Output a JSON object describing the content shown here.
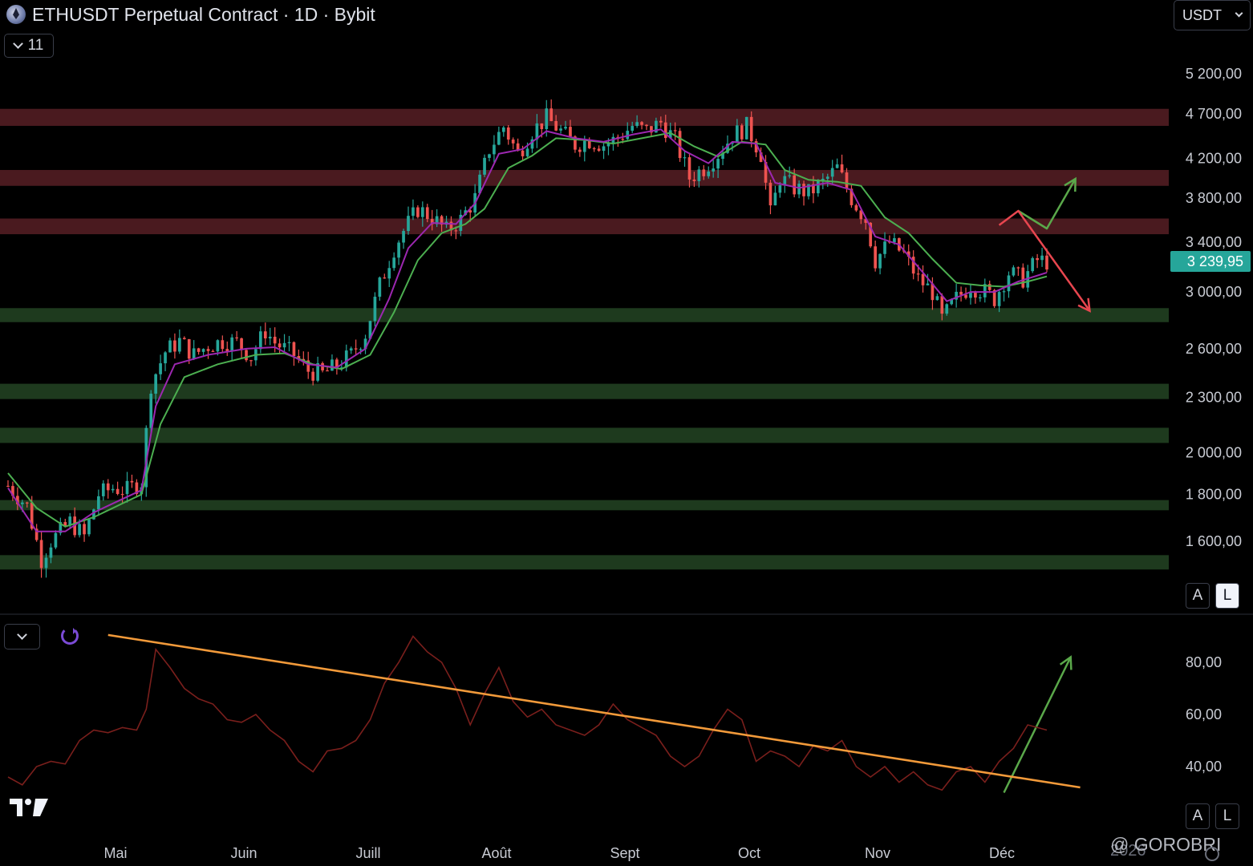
{
  "header": {
    "title": "ETHUSDT Perpetual Contract · 1D · Bybit",
    "indicator_count": "11",
    "currency": "USDT"
  },
  "scale_buttons": {
    "auto": "A",
    "log": "L"
  },
  "watermark": "@ GOROBRI",
  "year_label": "2026",
  "colors": {
    "up": "#26a69a",
    "down": "#ef5350",
    "ema_fast": "#9c27b0",
    "ema_slow": "#4caf50",
    "resistance_zone": "#4a1a1f",
    "support_zone": "#1e3a1e",
    "rsi_line": "#7a1f1c",
    "trendline": "#f29a3a",
    "arrow_up": "#5aa84a",
    "arrow_down": "#e8464f",
    "price_tag": "#26a69a"
  },
  "chart_data": [
    {
      "type": "candlestick",
      "title": "ETHUSDT Perpetual Contract · 1D · Bybit",
      "scale": "log",
      "ylim": [
        1450,
        5500
      ],
      "y_ticks": [
        {
          "value": 5200,
          "label": "5 200,00"
        },
        {
          "value": 4700,
          "label": "4 700,00"
        },
        {
          "value": 4200,
          "label": "4 200,00"
        },
        {
          "value": 3800,
          "label": "3 800,00"
        },
        {
          "value": 3400,
          "label": "3 400,00"
        },
        {
          "value": 3000,
          "label": "3 000,00"
        },
        {
          "value": 2600,
          "label": "2 600,00"
        },
        {
          "value": 2300,
          "label": "2 300,00"
        },
        {
          "value": 2000,
          "label": "2 000,00"
        },
        {
          "value": 1800,
          "label": "1 800,00"
        },
        {
          "value": 1600,
          "label": "1 600,00"
        }
      ],
      "last_price": {
        "value": 3239.95,
        "label": "3 239,95"
      },
      "x_ticks": [
        "Mai",
        "Juin",
        "Juill",
        "Août",
        "Sept",
        "Oct",
        "Nov",
        "Déc"
      ],
      "resistance_zones": [
        [
          4560,
          4760
        ],
        [
          3920,
          4080
        ],
        [
          3470,
          3610
        ]
      ],
      "support_zones": [
        [
          2780,
          2880
        ],
        [
          2290,
          2380
        ],
        [
          2050,
          2130
        ],
        [
          1730,
          1775
        ],
        [
          1490,
          1545
        ]
      ],
      "close_path": [
        [
          0,
          1840
        ],
        [
          4,
          1750
        ],
        [
          7,
          1530
        ],
        [
          9,
          1600
        ],
        [
          13,
          1680
        ],
        [
          16,
          1620
        ],
        [
          19,
          1800
        ],
        [
          22,
          1830
        ],
        [
          25,
          1820
        ],
        [
          28,
          1860
        ],
        [
          30,
          2380
        ],
        [
          33,
          2580
        ],
        [
          36,
          2650
        ],
        [
          39,
          2560
        ],
        [
          42,
          2620
        ],
        [
          45,
          2650
        ],
        [
          48,
          2640
        ],
        [
          51,
          2550
        ],
        [
          54,
          2720
        ],
        [
          56,
          2640
        ],
        [
          60,
          2560
        ],
        [
          63,
          2460
        ],
        [
          66,
          2440
        ],
        [
          69,
          2490
        ],
        [
          72,
          2560
        ],
        [
          75,
          2700
        ],
        [
          78,
          3050
        ],
        [
          81,
          3350
        ],
        [
          83,
          3500
        ],
        [
          86,
          3700
        ],
        [
          89,
          3620
        ],
        [
          92,
          3500
        ],
        [
          95,
          3600
        ],
        [
          98,
          3800
        ],
        [
          101,
          4300
        ],
        [
          104,
          4550
        ],
        [
          107,
          4250
        ],
        [
          110,
          4500
        ],
        [
          113,
          4650
        ],
        [
          116,
          4500
        ],
        [
          119,
          4350
        ],
        [
          122,
          4400
        ],
        [
          125,
          4350
        ],
        [
          128,
          4420
        ],
        [
          131,
          4560
        ],
        [
          134,
          4500
        ],
        [
          137,
          4600
        ],
        [
          140,
          4400
        ],
        [
          143,
          4000
        ],
        [
          146,
          4100
        ],
        [
          149,
          4250
        ],
        [
          152,
          4450
        ],
        [
          155,
          4550
        ],
        [
          158,
          4250
        ],
        [
          160,
          3650
        ],
        [
          162,
          4000
        ],
        [
          165,
          3900
        ],
        [
          168,
          3850
        ],
        [
          171,
          3950
        ],
        [
          174,
          4100
        ],
        [
          177,
          3800
        ],
        [
          180,
          3600
        ],
        [
          182,
          3250
        ],
        [
          185,
          3400
        ],
        [
          188,
          3300
        ],
        [
          191,
          3100
        ],
        [
          194,
          3000
        ],
        [
          196,
          2800
        ],
        [
          199,
          2950
        ],
        [
          202,
          3050
        ],
        [
          205,
          3000
        ],
        [
          207,
          2950
        ],
        [
          210,
          3150
        ],
        [
          213,
          3100
        ],
        [
          216,
          3250
        ],
        [
          218,
          3240
        ]
      ],
      "ema_fast_path": [
        [
          0,
          1830
        ],
        [
          6,
          1640
        ],
        [
          12,
          1640
        ],
        [
          18,
          1720
        ],
        [
          24,
          1780
        ],
        [
          28,
          1820
        ],
        [
          31,
          2250
        ],
        [
          35,
          2500
        ],
        [
          42,
          2560
        ],
        [
          50,
          2600
        ],
        [
          56,
          2610
        ],
        [
          63,
          2500
        ],
        [
          69,
          2480
        ],
        [
          75,
          2600
        ],
        [
          80,
          2950
        ],
        [
          84,
          3350
        ],
        [
          89,
          3570
        ],
        [
          94,
          3560
        ],
        [
          98,
          3750
        ],
        [
          103,
          4250
        ],
        [
          108,
          4300
        ],
        [
          113,
          4500
        ],
        [
          119,
          4420
        ],
        [
          125,
          4380
        ],
        [
          131,
          4460
        ],
        [
          137,
          4520
        ],
        [
          142,
          4280
        ],
        [
          147,
          4150
        ],
        [
          152,
          4380
        ],
        [
          157,
          4360
        ],
        [
          161,
          3950
        ],
        [
          166,
          3900
        ],
        [
          172,
          3950
        ],
        [
          177,
          3880
        ],
        [
          182,
          3450
        ],
        [
          187,
          3380
        ],
        [
          192,
          3150
        ],
        [
          197,
          2930
        ],
        [
          202,
          3000
        ],
        [
          207,
          3000
        ],
        [
          212,
          3080
        ],
        [
          218,
          3150
        ]
      ],
      "ema_slow_path": [
        [
          0,
          1900
        ],
        [
          6,
          1740
        ],
        [
          12,
          1660
        ],
        [
          18,
          1700
        ],
        [
          24,
          1760
        ],
        [
          28,
          1800
        ],
        [
          32,
          2150
        ],
        [
          37,
          2420
        ],
        [
          44,
          2500
        ],
        [
          52,
          2560
        ],
        [
          58,
          2570
        ],
        [
          64,
          2500
        ],
        [
          70,
          2470
        ],
        [
          76,
          2560
        ],
        [
          81,
          2850
        ],
        [
          86,
          3250
        ],
        [
          91,
          3480
        ],
        [
          96,
          3560
        ],
        [
          100,
          3700
        ],
        [
          105,
          4100
        ],
        [
          110,
          4230
        ],
        [
          115,
          4420
        ],
        [
          121,
          4400
        ],
        [
          127,
          4360
        ],
        [
          133,
          4420
        ],
        [
          139,
          4480
        ],
        [
          144,
          4330
        ],
        [
          149,
          4220
        ],
        [
          154,
          4380
        ],
        [
          159,
          4350
        ],
        [
          163,
          4080
        ],
        [
          168,
          3980
        ],
        [
          174,
          3960
        ],
        [
          179,
          3920
        ],
        [
          184,
          3620
        ],
        [
          189,
          3480
        ],
        [
          194,
          3260
        ],
        [
          199,
          3070
        ],
        [
          204,
          3050
        ],
        [
          209,
          3040
        ],
        [
          214,
          3080
        ],
        [
          218,
          3120
        ]
      ]
    },
    {
      "type": "line",
      "title": "",
      "ylim": [
        25,
        95
      ],
      "y_ticks": [
        {
          "value": 80,
          "label": "80,00"
        },
        {
          "value": 60,
          "label": "60,00"
        },
        {
          "value": 40,
          "label": "40,00"
        }
      ],
      "x": [
        0,
        3,
        6,
        9,
        12,
        15,
        18,
        21,
        24,
        27,
        29,
        31,
        34,
        37,
        40,
        43,
        46,
        49,
        52,
        55,
        58,
        61,
        64,
        67,
        70,
        73,
        76,
        79,
        82,
        85,
        88,
        91,
        94,
        97,
        100,
        103,
        106,
        109,
        112,
        115,
        118,
        121,
        124,
        127,
        130,
        133,
        136,
        139,
        142,
        145,
        148,
        151,
        154,
        157,
        160,
        163,
        166,
        169,
        172,
        175,
        178,
        181,
        184,
        187,
        190,
        193,
        196,
        199,
        202,
        205,
        208,
        211,
        214,
        218
      ],
      "values": [
        36,
        33,
        40,
        42,
        41,
        50,
        54,
        53,
        55,
        54,
        62,
        85,
        78,
        70,
        66,
        64,
        58,
        57,
        60,
        54,
        50,
        42,
        38,
        46,
        47,
        50,
        58,
        72,
        80,
        90,
        84,
        80,
        70,
        56,
        68,
        78,
        65,
        59,
        62,
        56,
        54,
        52,
        56,
        64,
        58,
        55,
        52,
        44,
        40,
        44,
        54,
        62,
        58,
        42,
        46,
        44,
        40,
        48,
        46,
        50,
        40,
        36,
        40,
        34,
        38,
        33,
        31,
        38,
        40,
        34,
        42,
        47,
        56,
        54
      ],
      "trendline": [
        [
          21,
          90.5
        ],
        [
          225,
          32
        ]
      ]
    }
  ],
  "annotations": {
    "price_up_arrow": [
      [
        208,
        3550
      ],
      [
        212,
        3750
      ],
      [
        225,
        3920
      ],
      [
        224,
        4180
      ]
    ],
    "price_down_arrow": [
      [
        208,
        3550
      ],
      [
        212,
        3680
      ],
      [
        227,
        2860
      ]
    ],
    "rsi_up_arrow": [
      [
        209,
        30
      ],
      [
        223,
        82
      ]
    ]
  }
}
